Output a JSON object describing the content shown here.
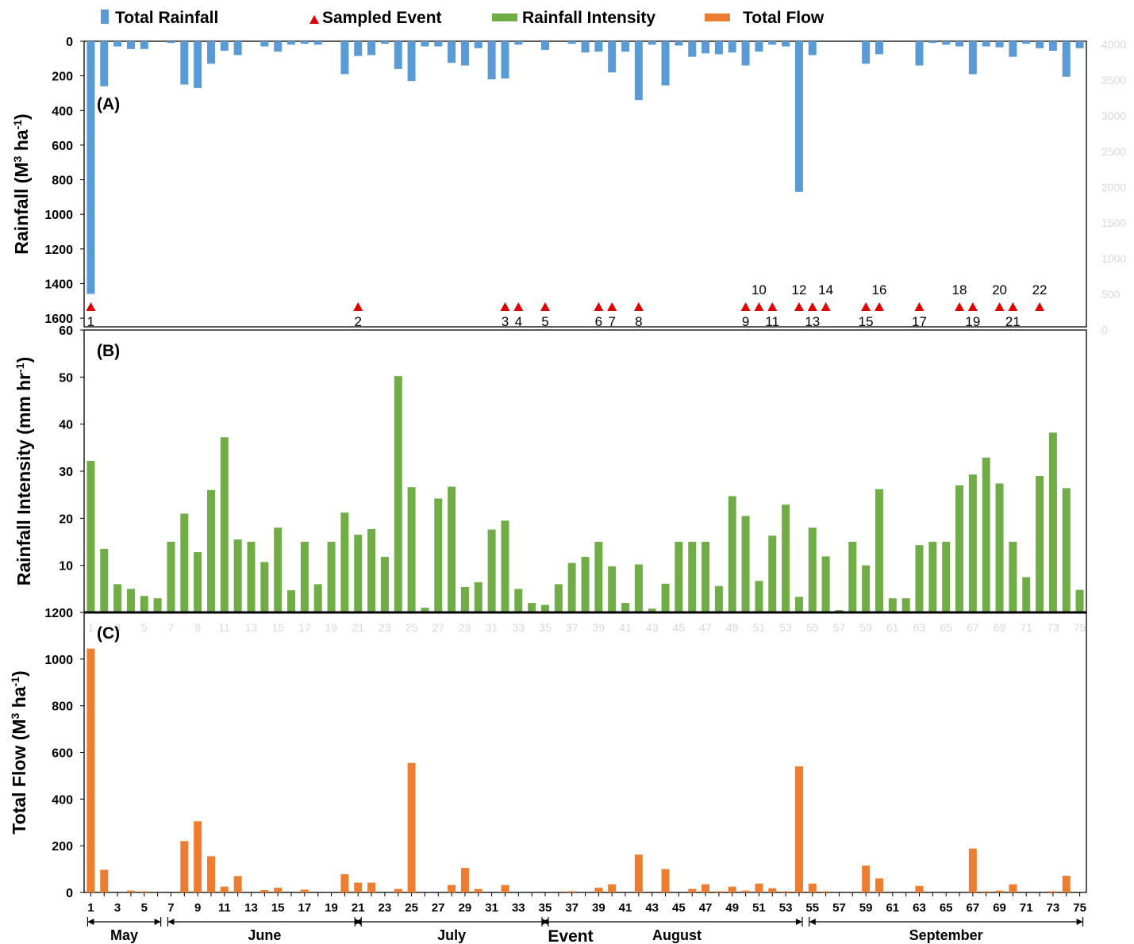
{
  "legend": {
    "items": [
      {
        "label": "Total Rainfall",
        "color": "#5b9bd5",
        "marker": "square"
      },
      {
        "label": "Sampled Event",
        "color": "#e00000",
        "marker": "triangle"
      },
      {
        "label": "Rainfall Intensity",
        "color": "#70ad47",
        "marker": "bar"
      },
      {
        "label": "Total Flow",
        "color": "#ed7d31",
        "marker": "bar"
      }
    ]
  },
  "chart_data": [
    {
      "type": "bar",
      "panel": "(A)",
      "ylabel_main": "Rainfall (M",
      "ylabel_sup": "3",
      "ylabel_mid": " ha",
      "ylabel_sup2": "-1",
      "ylabel_end": ")",
      "inverted_y": true,
      "ylim": [
        0,
        1650
      ],
      "yticks": [
        0,
        200,
        400,
        600,
        800,
        1000,
        1200,
        1400,
        1600
      ],
      "color": "#5b9bd5",
      "x": [
        1,
        2,
        3,
        4,
        5,
        6,
        7,
        8,
        9,
        10,
        11,
        12,
        13,
        14,
        15,
        16,
        17,
        18,
        19,
        20,
        21,
        22,
        23,
        24,
        25,
        26,
        27,
        28,
        29,
        30,
        31,
        32,
        33,
        34,
        35,
        36,
        37,
        38,
        39,
        40,
        41,
        42,
        43,
        44,
        45,
        46,
        47,
        48,
        49,
        50,
        51,
        52,
        53,
        54,
        55,
        56,
        57,
        58,
        59,
        60,
        61,
        62,
        63,
        64,
        65,
        66,
        67,
        68,
        69,
        70,
        71,
        72,
        73,
        74,
        75
      ],
      "values": [
        1460,
        260,
        30,
        45,
        45,
        0,
        10,
        250,
        270,
        130,
        55,
        80,
        0,
        30,
        60,
        20,
        15,
        20,
        0,
        190,
        85,
        80,
        15,
        160,
        230,
        30,
        30,
        125,
        140,
        40,
        220,
        215,
        20,
        0,
        50,
        0,
        15,
        65,
        60,
        180,
        60,
        340,
        20,
        255,
        25,
        90,
        70,
        75,
        65,
        140,
        60,
        20,
        30,
        870,
        80,
        0,
        0,
        0,
        130,
        75,
        0,
        0,
        140,
        10,
        20,
        30,
        190,
        30,
        35,
        90,
        15,
        40,
        55,
        205,
        40
      ],
      "sampled_events": [
        {
          "label": "1",
          "x": 1,
          "pos": "below"
        },
        {
          "label": "2",
          "x": 21,
          "pos": "below"
        },
        {
          "label": "3",
          "x": 32,
          "pos": "below"
        },
        {
          "label": "4",
          "x": 33,
          "pos": "below"
        },
        {
          "label": "5",
          "x": 35,
          "pos": "below"
        },
        {
          "label": "6",
          "x": 39,
          "pos": "below"
        },
        {
          "label": "7",
          "x": 40,
          "pos": "below"
        },
        {
          "label": "8",
          "x": 42,
          "pos": "below"
        },
        {
          "label": "9",
          "x": 50,
          "pos": "below"
        },
        {
          "label": "10",
          "x": 51,
          "pos": "above"
        },
        {
          "label": "11",
          "x": 52,
          "pos": "below"
        },
        {
          "label": "12",
          "x": 54,
          "pos": "above"
        },
        {
          "label": "13",
          "x": 55,
          "pos": "below"
        },
        {
          "label": "14",
          "x": 56,
          "pos": "above"
        },
        {
          "label": "15",
          "x": 59,
          "pos": "below"
        },
        {
          "label": "16",
          "x": 60,
          "pos": "above"
        },
        {
          "label": "17",
          "x": 63,
          "pos": "below"
        },
        {
          "label": "18",
          "x": 66,
          "pos": "above"
        },
        {
          "label": "19",
          "x": 67,
          "pos": "below"
        },
        {
          "label": "20",
          "x": 69,
          "pos": "above"
        },
        {
          "label": "21",
          "x": 70,
          "pos": "below"
        },
        {
          "label": "22",
          "x": 72,
          "pos": "above"
        }
      ],
      "faint_right_ticks": [
        "4000",
        "3500",
        "3000",
        "2500",
        "2000",
        "1500",
        "1000",
        "500",
        "0"
      ]
    },
    {
      "type": "bar",
      "panel": "(B)",
      "ylabel_main": "Rainfall Intensity (mm hr",
      "ylabel_sup": "-1",
      "ylabel_end": ")",
      "ylim": [
        0,
        60
      ],
      "yticks": [
        10,
        20,
        30,
        40,
        50,
        60
      ],
      "color": "#70ad47",
      "x": [
        1,
        2,
        3,
        4,
        5,
        6,
        7,
        8,
        9,
        10,
        11,
        12,
        13,
        14,
        15,
        16,
        17,
        18,
        19,
        20,
        21,
        22,
        23,
        24,
        25,
        26,
        27,
        28,
        29,
        30,
        31,
        32,
        33,
        34,
        35,
        36,
        37,
        38,
        39,
        40,
        41,
        42,
        43,
        44,
        45,
        46,
        47,
        48,
        49,
        50,
        51,
        52,
        53,
        54,
        55,
        56,
        57,
        58,
        59,
        60,
        61,
        62,
        63,
        64,
        65,
        66,
        67,
        68,
        69,
        70,
        71,
        72,
        73,
        74,
        75
      ],
      "values": [
        32.2,
        13.5,
        6,
        5,
        3.5,
        3,
        15,
        21,
        12.8,
        26,
        37.2,
        15.5,
        15,
        10.7,
        18,
        4.7,
        15,
        6,
        15,
        21.2,
        16.5,
        17.7,
        11.8,
        50.2,
        26.6,
        1,
        24.2,
        26.7,
        5.4,
        6.4,
        17.6,
        19.5,
        5,
        2,
        1.6,
        6,
        10.5,
        11.8,
        15,
        9.8,
        2,
        10.2,
        0.8,
        6.1,
        15,
        15,
        15,
        5.6,
        24.7,
        20.5,
        6.7,
        16.3,
        22.9,
        3.3,
        18,
        11.9,
        0.5,
        15,
        10,
        26.2,
        3,
        3,
        14.3,
        15,
        15,
        27,
        29.3,
        32.9,
        27.4,
        15,
        7.5,
        29,
        38.2,
        26.4,
        4.8
      ],
      "faint_x_ticks": [
        "1",
        "3",
        "5",
        "7",
        "9",
        "11",
        "13",
        "15",
        "17",
        "19",
        "21",
        "23",
        "25",
        "27",
        "29",
        "31",
        "33",
        "35",
        "37",
        "39",
        "41",
        "43",
        "45",
        "47",
        "49",
        "51",
        "53",
        "55",
        "57",
        "59",
        "61",
        "63",
        "65",
        "67",
        "69",
        "71",
        "73",
        "75"
      ]
    },
    {
      "type": "bar",
      "panel": "(C)",
      "ylabel_main": "Total Flow (M",
      "ylabel_sup": "3",
      "ylabel_mid": " ha",
      "ylabel_sup2": "-1",
      "ylabel_end": ")",
      "ylim": [
        0,
        1200
      ],
      "yticks": [
        0,
        200,
        400,
        600,
        800,
        1000,
        1200
      ],
      "color": "#ed7d31",
      "x": [
        1,
        2,
        3,
        4,
        5,
        6,
        7,
        8,
        9,
        10,
        11,
        12,
        13,
        14,
        15,
        16,
        17,
        18,
        19,
        20,
        21,
        22,
        23,
        24,
        25,
        26,
        27,
        28,
        29,
        30,
        31,
        32,
        33,
        34,
        35,
        36,
        37,
        38,
        39,
        40,
        41,
        42,
        43,
        44,
        45,
        46,
        47,
        48,
        49,
        50,
        51,
        52,
        53,
        54,
        55,
        56,
        57,
        58,
        59,
        60,
        61,
        62,
        63,
        64,
        65,
        66,
        67,
        68,
        69,
        70,
        71,
        72,
        73,
        74,
        75
      ],
      "values": [
        1045,
        97,
        0,
        8,
        5,
        0,
        0,
        220,
        305,
        155,
        25,
        70,
        0,
        10,
        20,
        0,
        12,
        0,
        0,
        78,
        42,
        42,
        0,
        15,
        555,
        0,
        0,
        32,
        105,
        15,
        0,
        32,
        0,
        0,
        0,
        0,
        5,
        0,
        20,
        35,
        0,
        162,
        0,
        100,
        0,
        15,
        35,
        5,
        25,
        8,
        38,
        18,
        5,
        540,
        38,
        5,
        0,
        0,
        115,
        60,
        0,
        0,
        28,
        0,
        0,
        0,
        188,
        5,
        8,
        35,
        0,
        0,
        5,
        72,
        0
      ],
      "xticks": [
        "1",
        "3",
        "5",
        "7",
        "9",
        "11",
        "13",
        "15",
        "17",
        "19",
        "21",
        "23",
        "25",
        "27",
        "29",
        "31",
        "33",
        "35",
        "37",
        "39",
        "41",
        "43",
        "45",
        "47",
        "49",
        "51",
        "53",
        "55",
        "57",
        "59",
        "61",
        "63",
        "65",
        "67",
        "69",
        "71",
        "73",
        "75"
      ],
      "xlabel": "Event"
    }
  ],
  "months": [
    {
      "label": "May",
      "start": 1,
      "end": 6
    },
    {
      "label": "June",
      "start": 7,
      "end": 21
    },
    {
      "label": "July",
      "start": 21,
      "end": 35
    },
    {
      "label": "August",
      "start": 35,
      "end": 54
    },
    {
      "label": "September",
      "start": 55,
      "end": 75
    }
  ]
}
